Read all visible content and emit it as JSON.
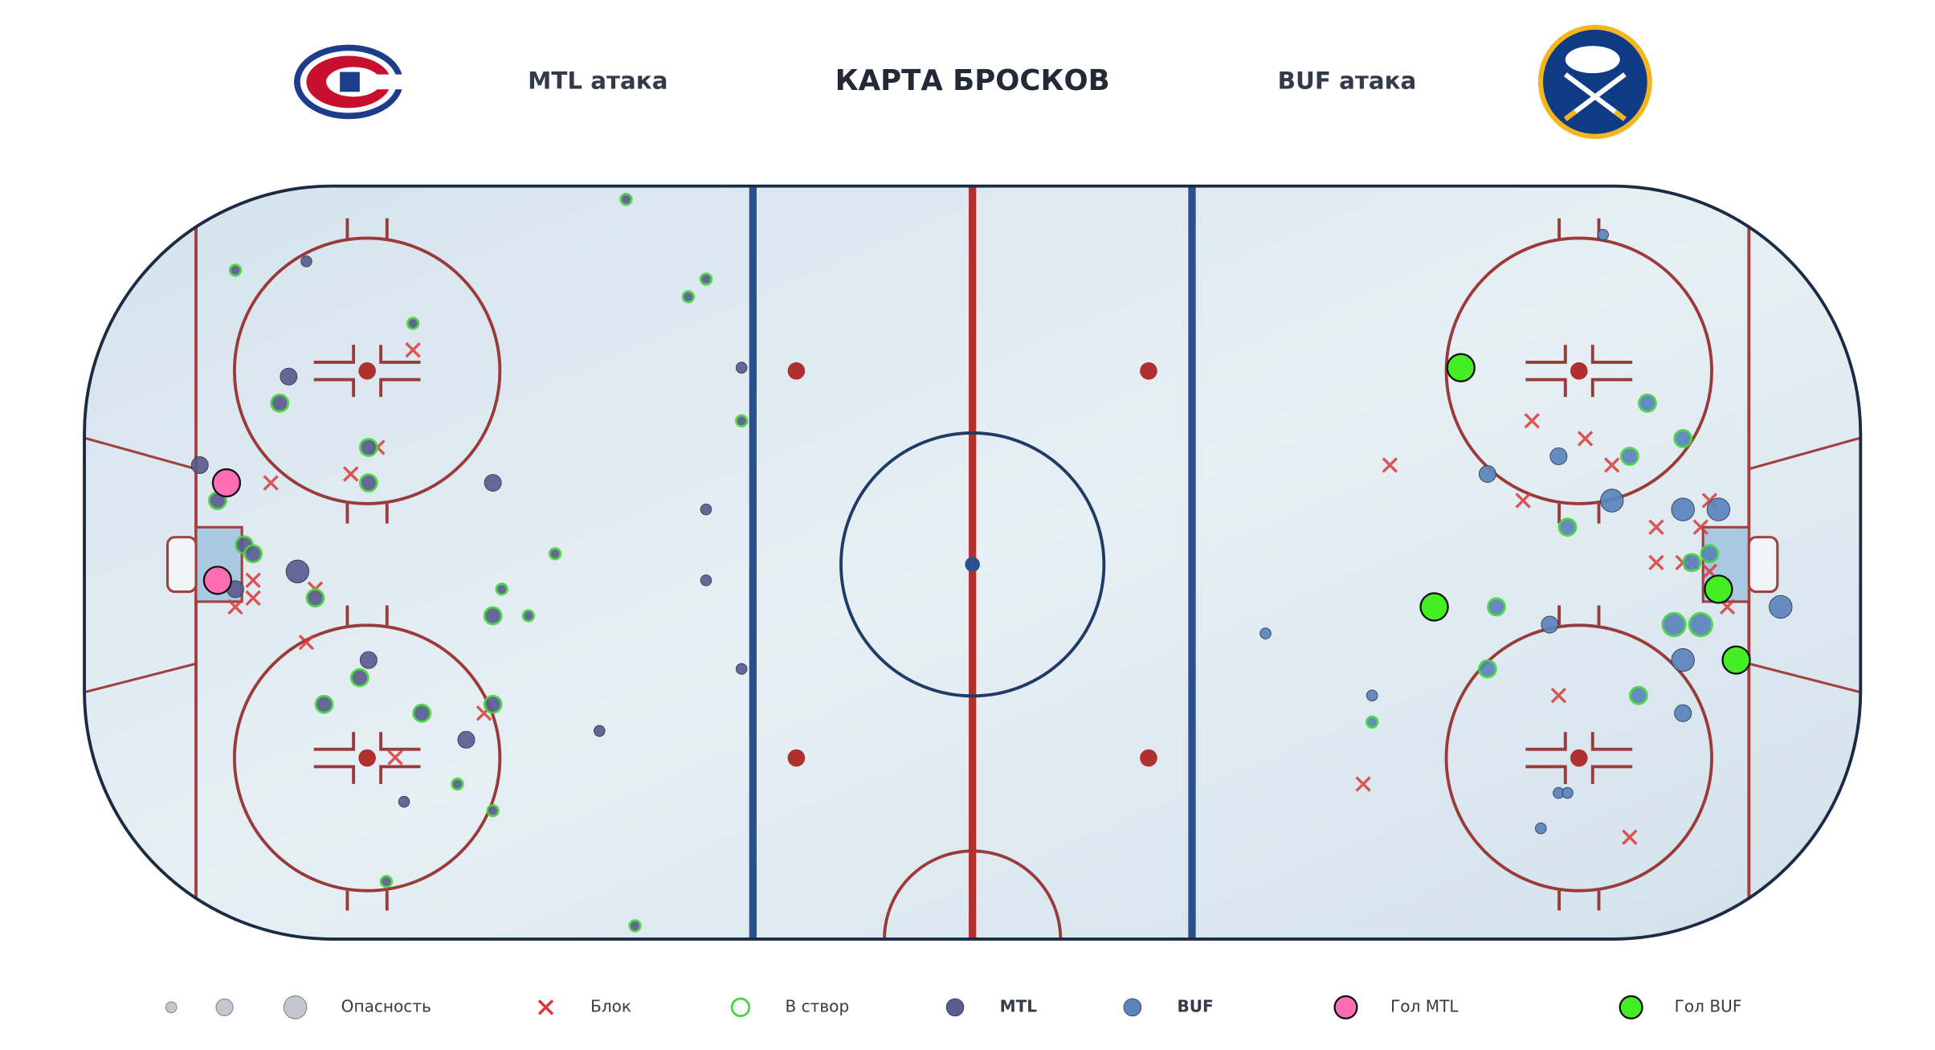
{
  "chart_data": {
    "type": "shotmap",
    "title": "КАРТА БРОСКОВ",
    "left_label": "MTL атака",
    "right_label": "BUF атака",
    "xlim": [
      -100,
      100
    ],
    "ylim": [
      -42.5,
      42.5
    ],
    "size_label": "Опасность",
    "size_legend": [
      1,
      2,
      3
    ],
    "on_target_label": "В створ",
    "on_target_color": "#44d63c",
    "series": [
      {
        "name": "MTL",
        "color": "#5b5c8f",
        "x": [
          -39,
          -83,
          -75,
          -30,
          -32,
          -63,
          -26,
          -77,
          -78,
          -26,
          -68,
          -87,
          -68,
          -54,
          -85,
          -30,
          -82,
          -81,
          -47,
          -76,
          -30,
          -53,
          -83,
          -74,
          -54,
          -50,
          -26,
          -68,
          -69,
          -73,
          -62,
          -54,
          -57,
          -42,
          -58,
          -64,
          -54,
          -66,
          -38
        ],
        "y": [
          41,
          33,
          34,
          32,
          30,
          27,
          22,
          21,
          18,
          16,
          13,
          11,
          9,
          9,
          7,
          6,
          2,
          1,
          1,
          -1,
          -2,
          -3,
          -3,
          -4,
          -6,
          -6,
          -12,
          -11,
          -13,
          -16,
          -17,
          -16,
          -20,
          -19,
          -25,
          -27,
          -28,
          -36,
          -41
        ],
        "sizes": [
          1,
          1,
          1,
          1,
          1,
          1,
          1,
          2,
          2,
          1,
          2,
          2,
          2,
          2,
          2,
          1,
          2,
          2,
          1,
          3,
          1,
          1,
          2,
          2,
          2,
          1,
          1,
          2,
          2,
          2,
          2,
          2,
          2,
          1,
          1,
          1,
          1,
          1,
          1
        ],
        "on_target": [
          true,
          true,
          false,
          true,
          true,
          true,
          false,
          false,
          true,
          true,
          true,
          false,
          true,
          false,
          true,
          false,
          true,
          true,
          true,
          false,
          false,
          true,
          false,
          true,
          true,
          true,
          false,
          false,
          true,
          true,
          true,
          true,
          false,
          false,
          true,
          false,
          true,
          true,
          true
        ]
      },
      {
        "name": "BUF",
        "color": "#5b84bd",
        "x": [
          71,
          76,
          80,
          74,
          58,
          66,
          72,
          80,
          84,
          67,
          83,
          81,
          59,
          91,
          65,
          79,
          82,
          80,
          58,
          33,
          45,
          75,
          45,
          80,
          66,
          67,
          64
        ],
        "y": [
          37,
          18,
          14,
          12,
          10,
          12,
          7,
          6,
          6,
          4,
          1,
          0,
          -5,
          -5,
          -7,
          -7,
          -7,
          -11,
          -12,
          -8,
          -15,
          -15,
          -18,
          -17,
          -26,
          -26,
          -30
        ],
        "sizes": [
          1,
          2,
          2,
          2,
          2,
          2,
          3,
          3,
          3,
          2,
          2,
          2,
          2,
          3,
          2,
          3,
          3,
          3,
          2,
          1,
          1,
          2,
          1,
          2,
          1,
          1,
          1
        ],
        "on_target": [
          false,
          true,
          true,
          true,
          false,
          false,
          false,
          false,
          false,
          true,
          true,
          true,
          true,
          false,
          false,
          true,
          true,
          false,
          true,
          false,
          false,
          true,
          true,
          false,
          false,
          false,
          false
        ]
      },
      {
        "name": "Гол MTL",
        "color": "#ff6eb4",
        "x": [
          -84,
          -85
        ],
        "y": [
          9,
          -2
        ]
      },
      {
        "name": "Гол BUF",
        "color": "#44ee22",
        "x": [
          55,
          52,
          84,
          86
        ],
        "y": [
          22,
          -5,
          -3,
          -11
        ]
      },
      {
        "name": "Блок",
        "color": "#d9383a",
        "marker": "x",
        "x": [
          -63,
          -67,
          -70,
          -79,
          -81,
          -81,
          -83,
          -74,
          -75,
          -55,
          -65,
          47,
          63,
          69,
          72,
          62,
          83,
          77,
          82,
          77,
          80,
          81,
          83,
          85,
          66,
          44,
          74
        ],
        "y": [
          24,
          13,
          10,
          9,
          -2,
          -4,
          -5,
          -3,
          -9,
          -17,
          -22,
          11,
          16,
          14,
          11,
          7,
          7,
          4,
          4,
          0,
          0,
          0,
          -1,
          -5,
          -15,
          -25,
          -31
        ]
      }
    ]
  }
}
